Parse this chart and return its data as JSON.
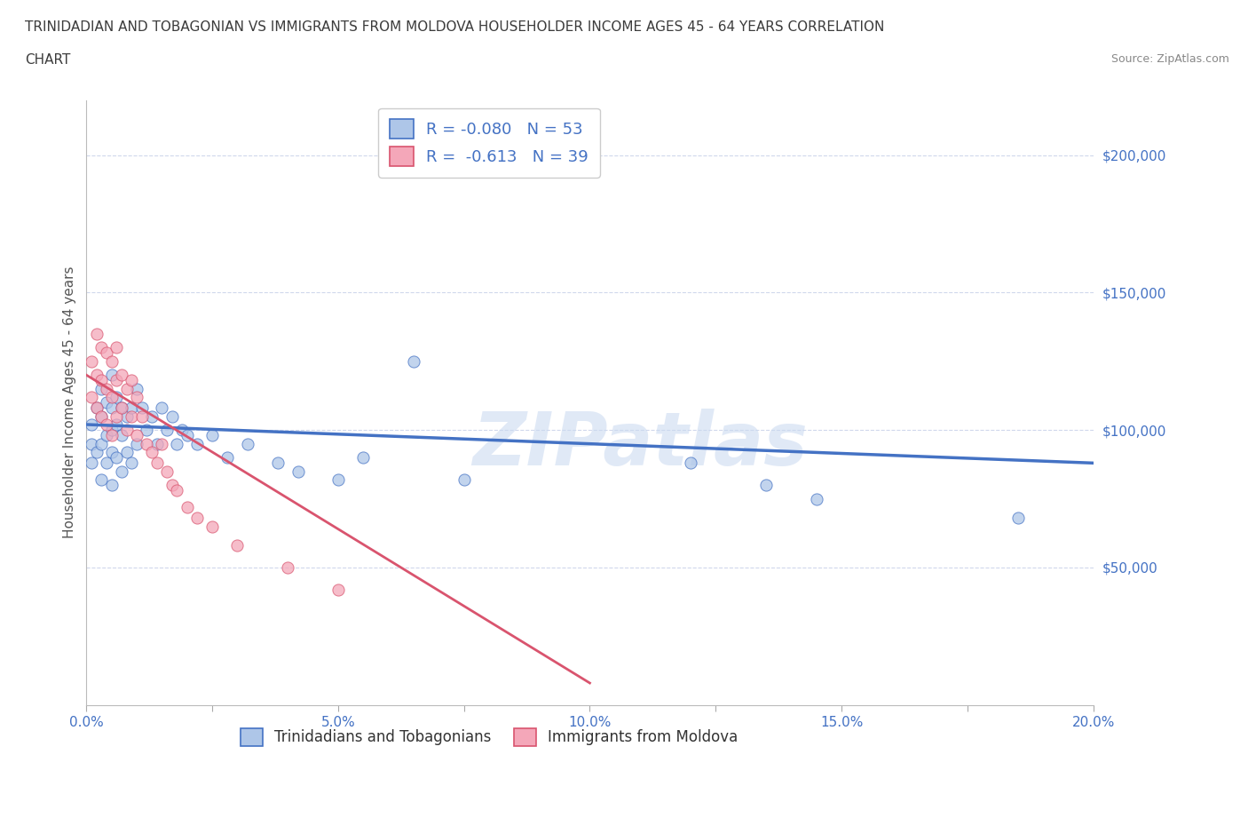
{
  "title_line1": "TRINIDADIAN AND TOBAGONIAN VS IMMIGRANTS FROM MOLDOVA HOUSEHOLDER INCOME AGES 45 - 64 YEARS CORRELATION",
  "title_line2": "CHART",
  "source": "Source: ZipAtlas.com",
  "ylabel": "Householder Income Ages 45 - 64 years",
  "xlim": [
    0.0,
    0.2
  ],
  "ylim": [
    0,
    220000
  ],
  "yticks": [
    0,
    50000,
    100000,
    150000,
    200000
  ],
  "ytick_labels": [
    "",
    "$50,000",
    "$100,000",
    "$150,000",
    "$200,000"
  ],
  "xticks": [
    0.0,
    0.025,
    0.05,
    0.075,
    0.1,
    0.125,
    0.15,
    0.175,
    0.2
  ],
  "xtick_labels": [
    "0.0%",
    "",
    "5.0%",
    "",
    "10.0%",
    "",
    "15.0%",
    "",
    "20.0%"
  ],
  "blue_R": -0.08,
  "blue_N": 53,
  "pink_R": -0.613,
  "pink_N": 39,
  "legend_label_blue": "Trinidadians and Tobagonians",
  "legend_label_pink": "Immigrants from Moldova",
  "watermark": "ZIPatlas",
  "title_color": "#3c3c3c",
  "axis_color": "#4472c4",
  "blue_scatter_color": "#aec6e8",
  "blue_line_color": "#4472c4",
  "pink_scatter_color": "#f4a7b9",
  "pink_line_color": "#d9546e",
  "grid_color": "#d0d8ec",
  "blue_scatter_x": [
    0.001,
    0.001,
    0.001,
    0.002,
    0.002,
    0.003,
    0.003,
    0.003,
    0.003,
    0.004,
    0.004,
    0.004,
    0.005,
    0.005,
    0.005,
    0.005,
    0.005,
    0.006,
    0.006,
    0.006,
    0.007,
    0.007,
    0.007,
    0.008,
    0.008,
    0.009,
    0.009,
    0.01,
    0.01,
    0.011,
    0.012,
    0.013,
    0.014,
    0.015,
    0.016,
    0.017,
    0.018,
    0.019,
    0.02,
    0.022,
    0.025,
    0.028,
    0.032,
    0.038,
    0.042,
    0.05,
    0.055,
    0.065,
    0.075,
    0.12,
    0.135,
    0.145,
    0.185
  ],
  "blue_scatter_y": [
    102000,
    95000,
    88000,
    108000,
    92000,
    115000,
    105000,
    95000,
    82000,
    110000,
    98000,
    88000,
    120000,
    108000,
    100000,
    92000,
    80000,
    112000,
    102000,
    90000,
    108000,
    98000,
    85000,
    105000,
    92000,
    108000,
    88000,
    115000,
    95000,
    108000,
    100000,
    105000,
    95000,
    108000,
    100000,
    105000,
    95000,
    100000,
    98000,
    95000,
    98000,
    90000,
    95000,
    88000,
    85000,
    82000,
    90000,
    125000,
    82000,
    88000,
    80000,
    75000,
    68000
  ],
  "pink_scatter_x": [
    0.001,
    0.001,
    0.002,
    0.002,
    0.002,
    0.003,
    0.003,
    0.003,
    0.004,
    0.004,
    0.004,
    0.005,
    0.005,
    0.005,
    0.006,
    0.006,
    0.006,
    0.007,
    0.007,
    0.008,
    0.008,
    0.009,
    0.009,
    0.01,
    0.01,
    0.011,
    0.012,
    0.013,
    0.014,
    0.015,
    0.016,
    0.017,
    0.018,
    0.02,
    0.022,
    0.025,
    0.03,
    0.04,
    0.05
  ],
  "pink_scatter_y": [
    125000,
    112000,
    135000,
    120000,
    108000,
    130000,
    118000,
    105000,
    128000,
    115000,
    102000,
    125000,
    112000,
    98000,
    130000,
    118000,
    105000,
    120000,
    108000,
    115000,
    100000,
    118000,
    105000,
    112000,
    98000,
    105000,
    95000,
    92000,
    88000,
    95000,
    85000,
    80000,
    78000,
    72000,
    68000,
    65000,
    58000,
    50000,
    42000
  ],
  "blue_line_x0": 0.0,
  "blue_line_y0": 102000,
  "blue_line_x1": 0.2,
  "blue_line_y1": 88000,
  "pink_line_x0": 0.0,
  "pink_line_y0": 120000,
  "pink_line_x1": 0.1,
  "pink_line_y1": 8000
}
